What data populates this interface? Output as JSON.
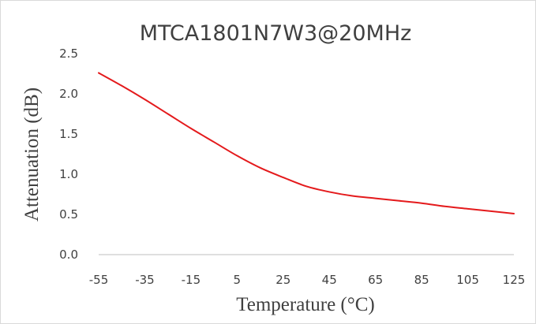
{
  "chart_data": {
    "type": "line",
    "title": "MTCA1801N7W3@20MHz",
    "xlabel": "Temperature (°C)",
    "ylabel": "Attenuation (dB)",
    "xlim": [
      -55,
      125
    ],
    "ylim": [
      0.0,
      2.5
    ],
    "x_ticks": [
      -55,
      -35,
      -15,
      5,
      25,
      45,
      65,
      85,
      105,
      125
    ],
    "x_tick_labels": [
      "-55",
      "-35",
      "-15",
      "5",
      "25",
      "45",
      "65",
      "85",
      "105",
      "125"
    ],
    "y_ticks": [
      0.0,
      0.5,
      1.0,
      1.5,
      2.0,
      2.5
    ],
    "y_tick_labels": [
      "0.0",
      "0.5",
      "1.0",
      "1.5",
      "2.0",
      "2.5"
    ],
    "grid": false,
    "legend": "none",
    "series": [
      {
        "color": "#e41a1c",
        "x": [
          -55,
          -45,
          -35,
          -25,
          -15,
          -5,
          5,
          15,
          25,
          35,
          45,
          55,
          65,
          75,
          85,
          95,
          105,
          115,
          125
        ],
        "y": [
          2.26,
          2.1,
          1.93,
          1.75,
          1.57,
          1.4,
          1.23,
          1.08,
          0.96,
          0.85,
          0.78,
          0.73,
          0.7,
          0.67,
          0.64,
          0.6,
          0.57,
          0.54,
          0.51
        ]
      }
    ]
  }
}
